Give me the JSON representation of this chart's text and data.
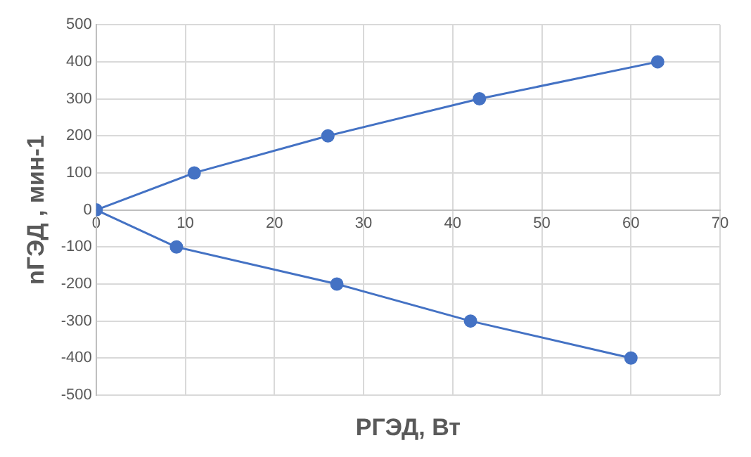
{
  "chart_data": {
    "type": "line",
    "xlabel": "РГЭД, Вт",
    "ylabel": "nГЭД , мин-1",
    "x": [
      60,
      42,
      27,
      9,
      0,
      11,
      26,
      43,
      63
    ],
    "series": [
      {
        "color": "#4472c4",
        "values": [
          -400,
          -300,
          -200,
          -100,
          0,
          100,
          200,
          300,
          400
        ]
      }
    ],
    "xlim": [
      0,
      70
    ],
    "xticks": [
      0,
      10,
      20,
      30,
      40,
      50,
      60,
      70
    ],
    "ylim": [
      -500,
      500
    ],
    "yticks": [
      -500,
      -400,
      -300,
      -200,
      -100,
      0,
      100,
      200,
      300,
      400,
      500
    ],
    "grid": true,
    "legend": false,
    "marker": "circle",
    "line_style": "solid"
  }
}
